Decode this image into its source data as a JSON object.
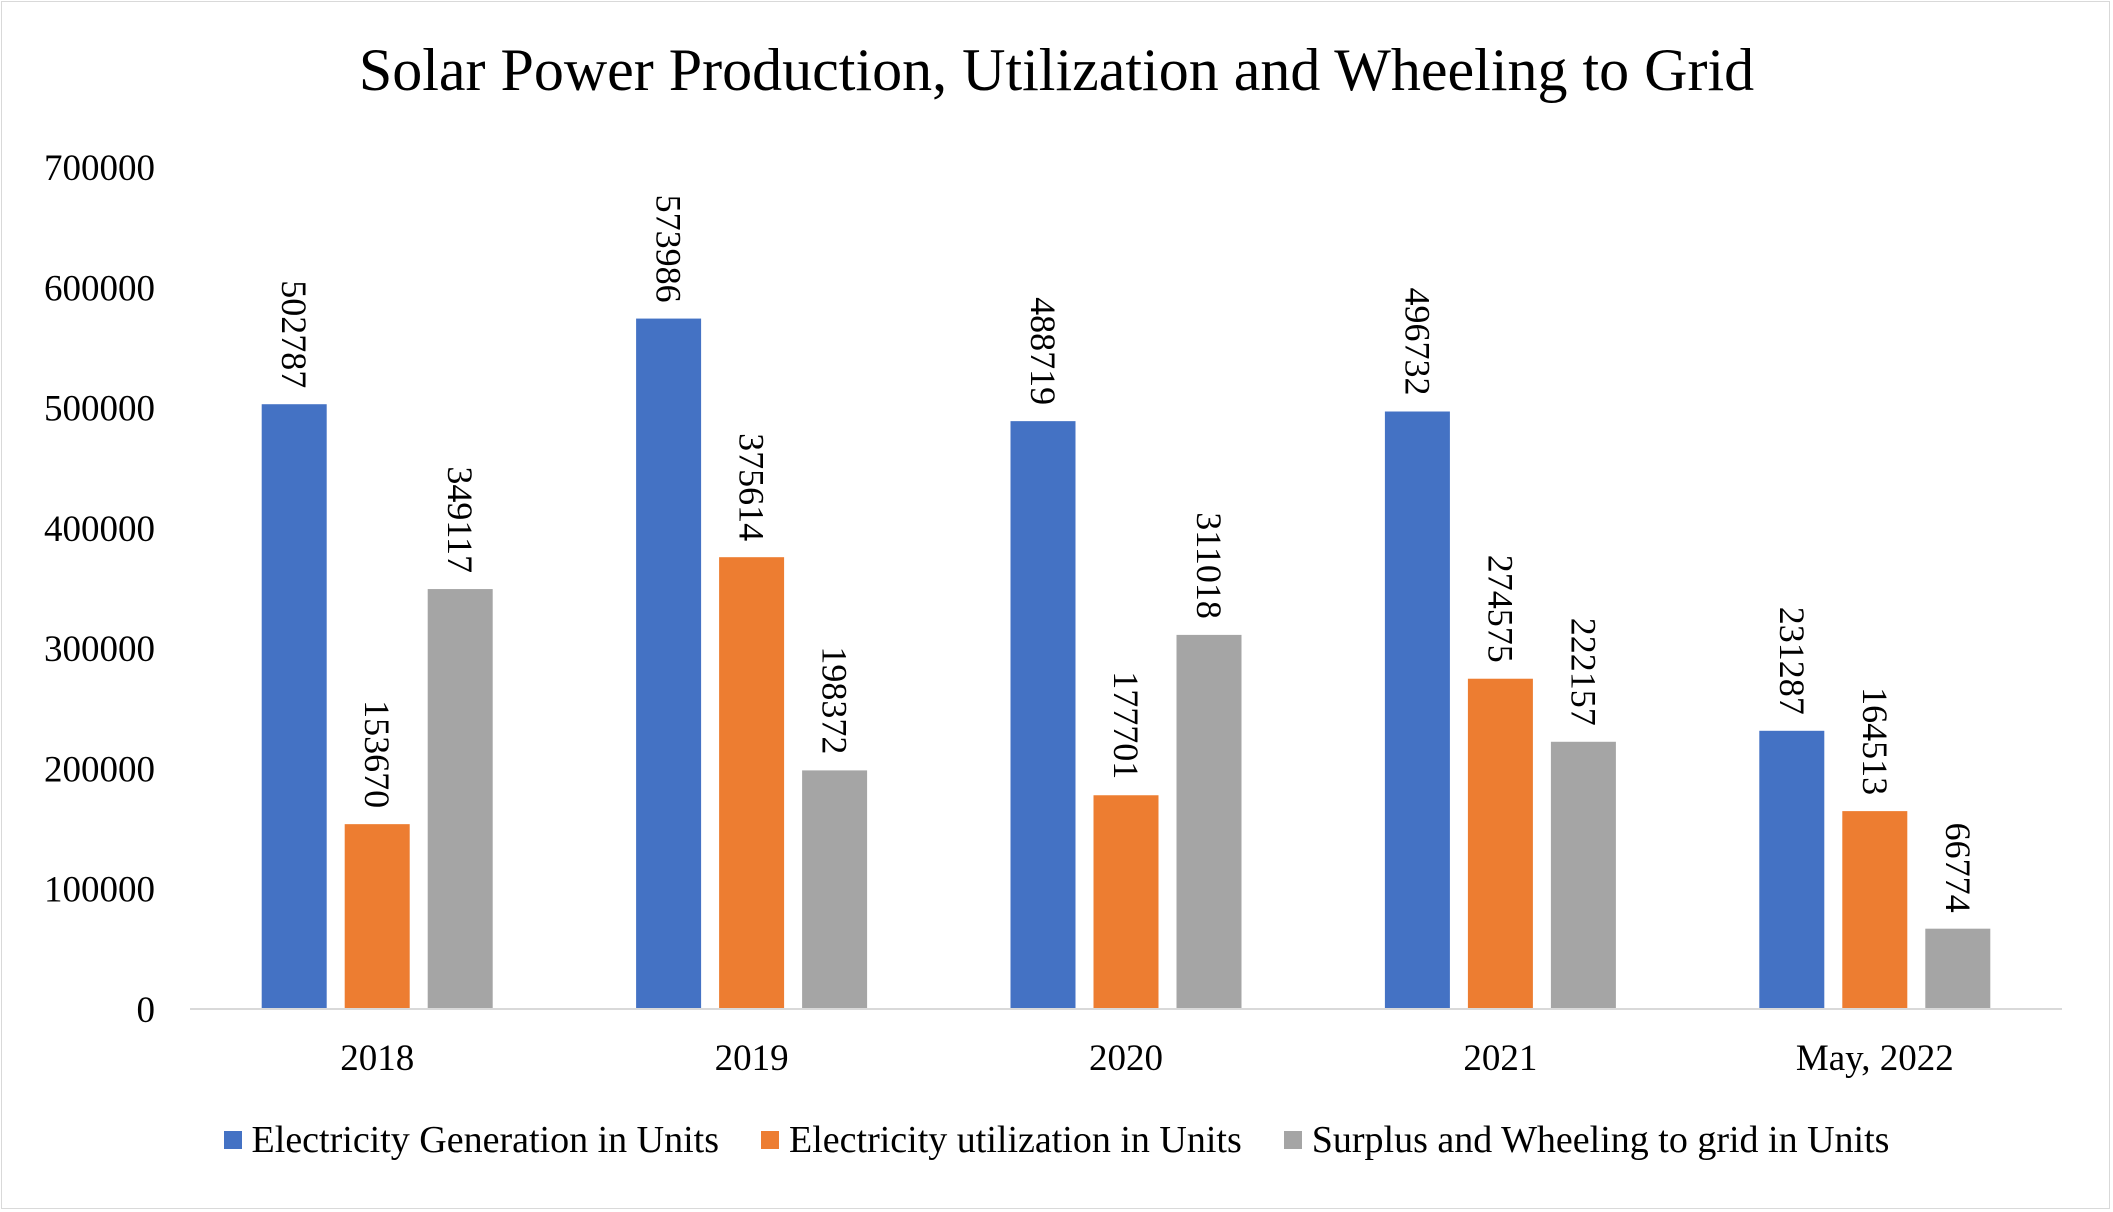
{
  "chart_data": {
    "type": "bar",
    "title": "Solar Power Production, Utilization and Wheeling to Grid",
    "xlabel": "",
    "ylabel": "",
    "categories": [
      "2018",
      "2019",
      "2020",
      "2021",
      "May, 2022"
    ],
    "series": [
      {
        "name": "Electricity Generation in Units",
        "color": "#4472c4",
        "values": [
          502787,
          573986,
          488719,
          496732,
          231287
        ]
      },
      {
        "name": "Electricity utilization in Units",
        "color": "#ed7d31",
        "values": [
          153670,
          375614,
          177701,
          274575,
          164513
        ]
      },
      {
        "name": "Surplus and Wheeling to grid in Units",
        "color": "#a5a5a5",
        "values": [
          349117,
          198372,
          311018,
          222157,
          66774
        ]
      }
    ],
    "ylim": [
      0,
      700000
    ],
    "yticks": [
      "0",
      "100000",
      "200000",
      "300000",
      "400000",
      "500000",
      "600000",
      "700000"
    ],
    "grid": false,
    "legend_position": "bottom",
    "data_labels": "rotated-vertical"
  }
}
